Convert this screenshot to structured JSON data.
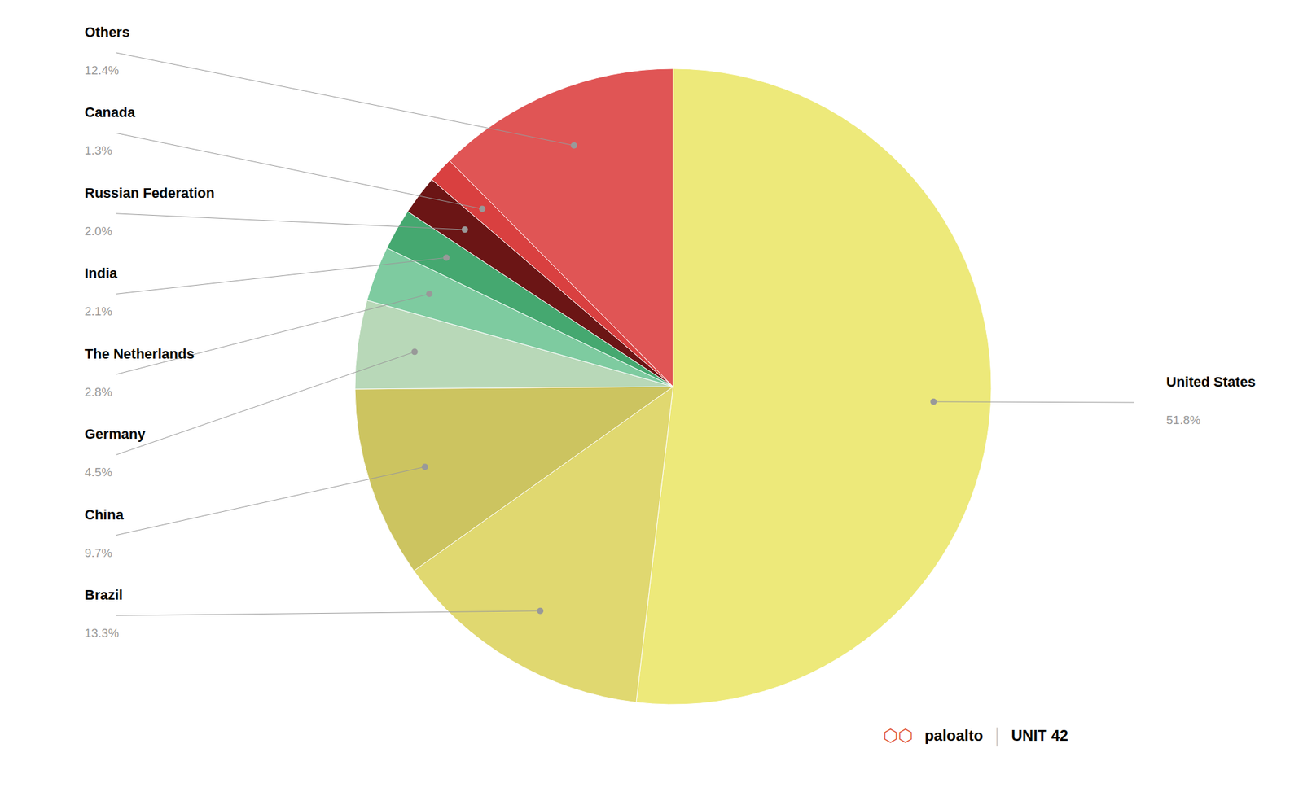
{
  "chart_data": {
    "type": "pie",
    "categories": [
      "United States",
      "Brazil",
      "China",
      "Germany",
      "The Netherlands",
      "India",
      "Russian Federation",
      "Canada",
      "Others"
    ],
    "values": [
      51.8,
      13.3,
      9.7,
      4.5,
      2.8,
      2.1,
      2.0,
      1.3,
      12.4
    ],
    "value_labels": [
      "51.8%",
      "13.3%",
      "9.7%",
      "4.5%",
      "2.8%",
      "2.1%",
      "2.0%",
      "1.3%",
      "12.4%"
    ],
    "colors": [
      "#ede97a",
      "#e0d870",
      "#ccc460",
      "#b8d8b8",
      "#7ecba0",
      "#45a870",
      "#6b1515",
      "#d94040",
      "#e05555"
    ],
    "annotations": [
      "⬡⬡",
      "paloalto",
      "|",
      "UNIT 42"
    ]
  }
}
